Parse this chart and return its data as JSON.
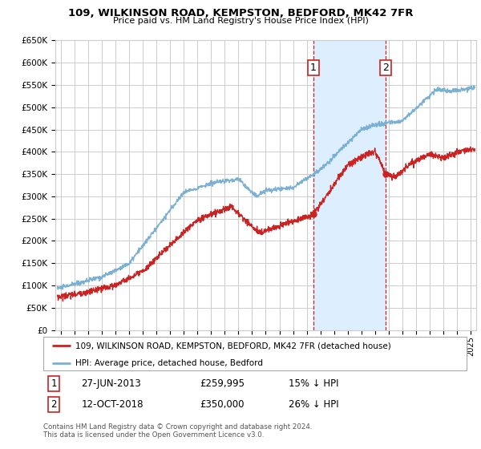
{
  "title": "109, WILKINSON ROAD, KEMPSTON, BEDFORD, MK42 7FR",
  "subtitle": "Price paid vs. HM Land Registry's House Price Index (HPI)",
  "ylim": [
    0,
    650000
  ],
  "yticks": [
    0,
    50000,
    100000,
    150000,
    200000,
    250000,
    300000,
    350000,
    400000,
    450000,
    500000,
    550000,
    600000,
    650000
  ],
  "xlim_start": 1994.6,
  "xlim_end": 2025.4,
  "marker1_x": 2013.49,
  "marker1_y": 259995,
  "marker1_label": "1",
  "marker1_date": "27-JUN-2013",
  "marker1_price": "£259,995",
  "marker1_hpi": "15% ↓ HPI",
  "marker2_x": 2018.79,
  "marker2_y": 350000,
  "marker2_label": "2",
  "marker2_date": "12-OCT-2018",
  "marker2_price": "£350,000",
  "marker2_hpi": "26% ↓ HPI",
  "legend_line1": "109, WILKINSON ROAD, KEMPSTON, BEDFORD, MK42 7FR (detached house)",
  "legend_line2": "HPI: Average price, detached house, Bedford",
  "footer": "Contains HM Land Registry data © Crown copyright and database right 2024.\nThis data is licensed under the Open Government Licence v3.0.",
  "red_color": "#cc2222",
  "blue_color": "#7ab0d4",
  "shade_color": "#ddeeff",
  "grid_color": "#cccccc",
  "background_color": "#ffffff"
}
